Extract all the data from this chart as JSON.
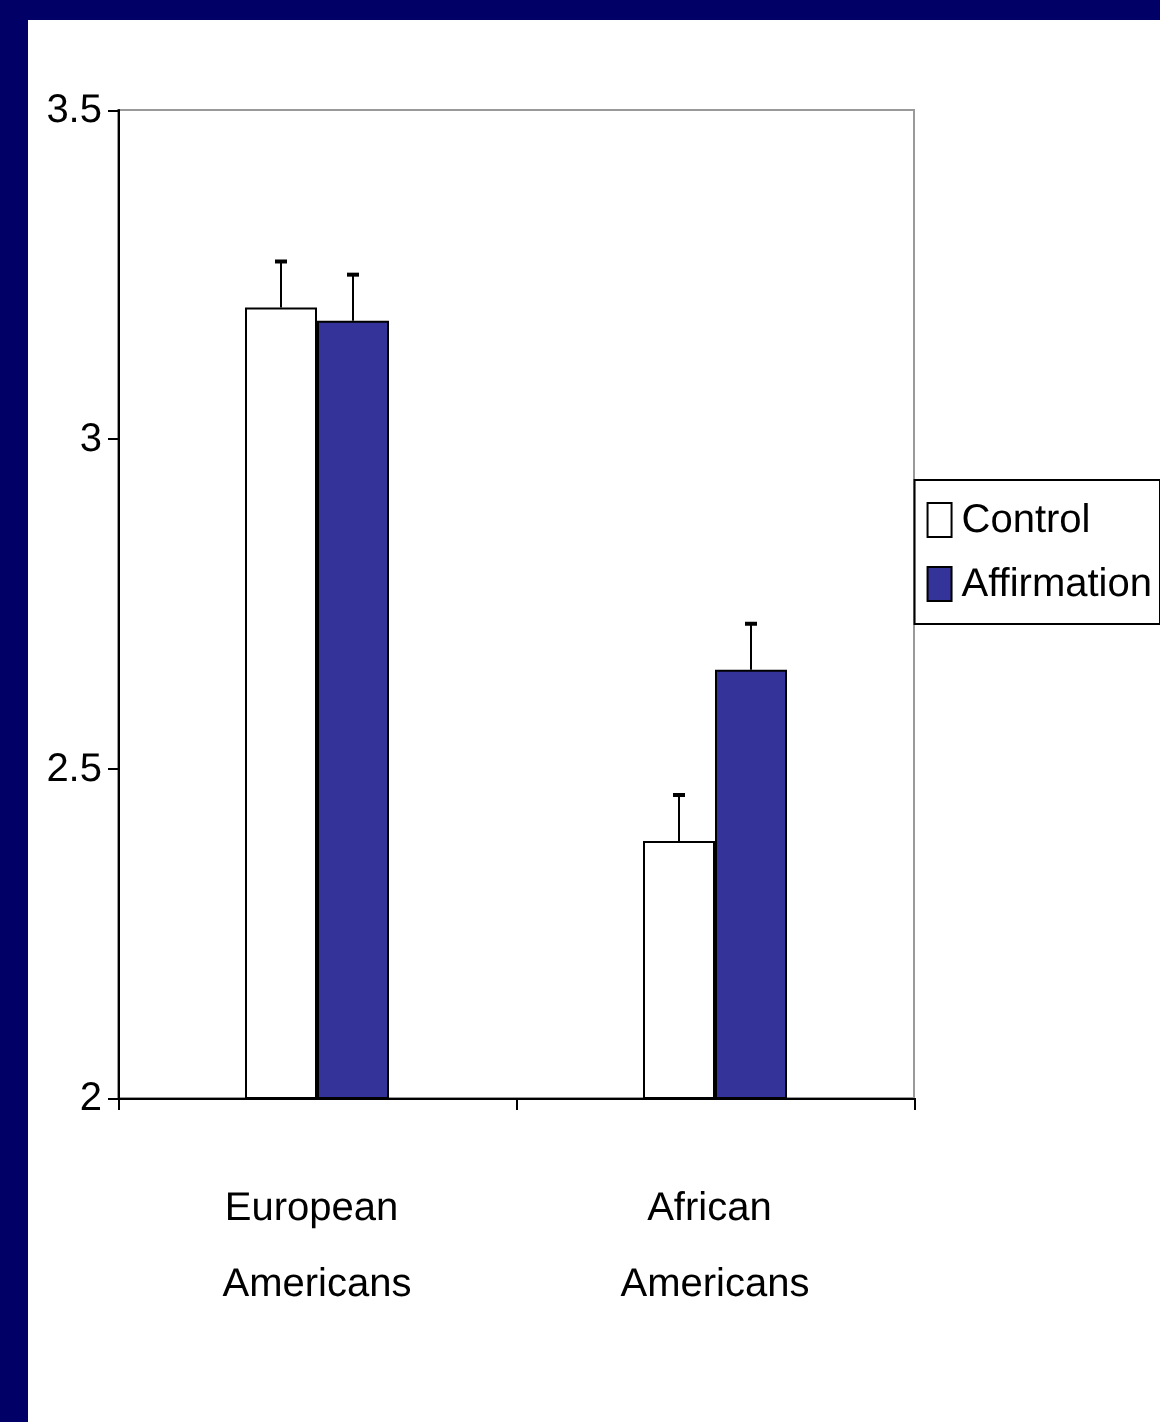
{
  "chart_data": {
    "type": "bar",
    "categories": [
      "European Americans",
      "African Americans"
    ],
    "series": [
      {
        "name": "Control",
        "color": "#ffffff",
        "values": [
          3.2,
          2.39
        ],
        "errors": [
          0.07,
          0.07
        ]
      },
      {
        "name": "Affirmation",
        "color": "#333399",
        "values": [
          3.18,
          2.65
        ],
        "errors": [
          0.07,
          0.07
        ]
      }
    ],
    "ylim": [
      2,
      3.5
    ],
    "yticks": [
      2,
      2.5,
      3,
      3.5
    ],
    "grid": false,
    "legend": "right"
  }
}
